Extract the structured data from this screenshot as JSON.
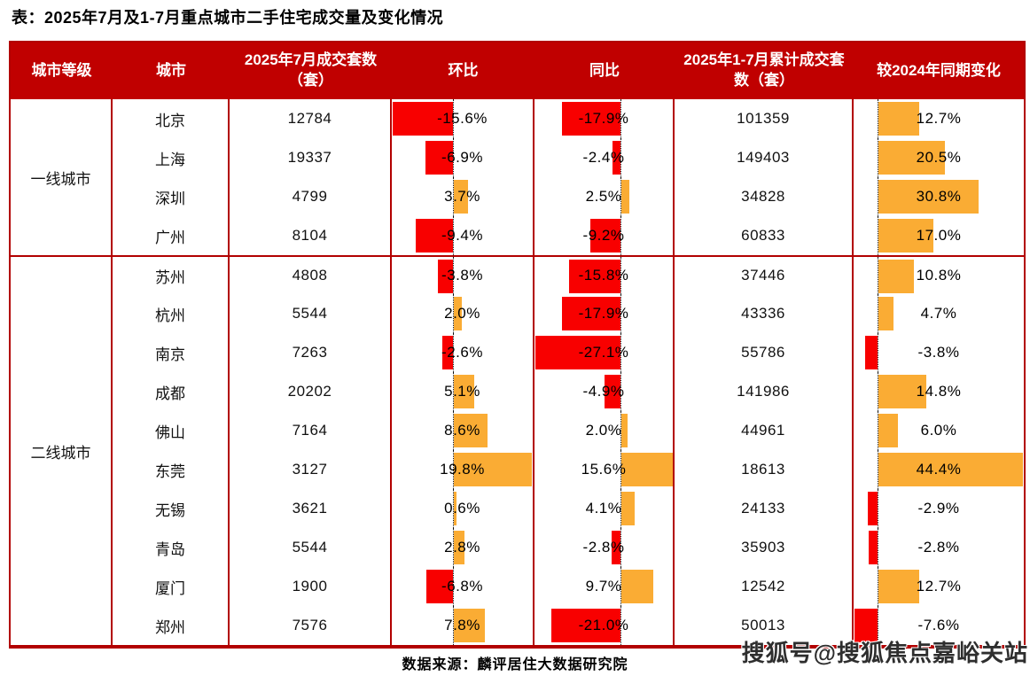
{
  "title": "表：2025年7月及1-7月重点城市二手住宅成交量及变化情况",
  "chart_data": {
    "type": "table",
    "title": "表：2025年7月及1-7月重点城市二手住宅成交量及变化情况",
    "columns": [
      "城市等级",
      "城市",
      "2025年7月成交套数（套）",
      "环比",
      "同比",
      "2025年1-7月累计成交套数（套）",
      "较2024年同期变化"
    ],
    "bar_columns_note": "环比/同比/较2024年同期变化 three columns drawn as in-cell bars: negative=red extending left of dotted zero axis, positive=amber extending right",
    "groups": [
      {
        "tier": "一线城市",
        "rows": [
          {
            "city": "北京",
            "july_units": "12784",
            "mom_pct": -15.6,
            "yoy_pct": -17.9,
            "cum_units": "101359",
            "vs2024_pct": 12.7
          },
          {
            "city": "上海",
            "july_units": "19337",
            "mom_pct": -6.9,
            "yoy_pct": -2.4,
            "cum_units": "149403",
            "vs2024_pct": 20.5
          },
          {
            "city": "深圳",
            "july_units": "4799",
            "mom_pct": 3.7,
            "yoy_pct": 2.5,
            "cum_units": "34828",
            "vs2024_pct": 30.8
          },
          {
            "city": "广州",
            "july_units": "8104",
            "mom_pct": -9.4,
            "yoy_pct": -9.2,
            "cum_units": "60833",
            "vs2024_pct": 17.0
          }
        ]
      },
      {
        "tier": "二线城市",
        "rows": [
          {
            "city": "苏州",
            "july_units": "4808",
            "mom_pct": -3.8,
            "yoy_pct": -15.8,
            "cum_units": "37446",
            "vs2024_pct": 10.8
          },
          {
            "city": "杭州",
            "july_units": "5544",
            "mom_pct": 2.0,
            "yoy_pct": -17.9,
            "cum_units": "43336",
            "vs2024_pct": 4.7
          },
          {
            "city": "南京",
            "july_units": "7263",
            "mom_pct": -2.6,
            "yoy_pct": -27.1,
            "cum_units": "55786",
            "vs2024_pct": -3.8
          },
          {
            "city": "成都",
            "july_units": "20202",
            "mom_pct": 5.1,
            "yoy_pct": -4.9,
            "cum_units": "141986",
            "vs2024_pct": 14.8
          },
          {
            "city": "佛山",
            "july_units": "7164",
            "mom_pct": 8.6,
            "yoy_pct": 2.0,
            "cum_units": "44961",
            "vs2024_pct": 6.0
          },
          {
            "city": "东莞",
            "july_units": "3127",
            "mom_pct": 19.8,
            "yoy_pct": 15.6,
            "cum_units": "18613",
            "vs2024_pct": 44.4
          },
          {
            "city": "无锡",
            "july_units": "3621",
            "mom_pct": 0.6,
            "yoy_pct": 4.1,
            "cum_units": "24133",
            "vs2024_pct": -2.9
          },
          {
            "city": "青岛",
            "july_units": "5544",
            "mom_pct": 2.8,
            "yoy_pct": -2.8,
            "cum_units": "35903",
            "vs2024_pct": -2.8
          },
          {
            "city": "厦门",
            "july_units": "1900",
            "mom_pct": -6.8,
            "yoy_pct": 9.7,
            "cum_units": "12542",
            "vs2024_pct": 12.7
          },
          {
            "city": "郑州",
            "july_units": "7576",
            "mom_pct": 7.8,
            "yoy_pct": -21.0,
            "cum_units": "50013",
            "vs2024_pct": -7.6
          }
        ]
      }
    ]
  },
  "footer": {
    "source": "数据来源：麟评居住大数据研究院"
  },
  "watermark": "搜狐号@搜狐焦点嘉峪关站",
  "colors": {
    "header_bg": "#C00000",
    "table_border": "#B20000",
    "bar_negative": "#F80000",
    "bar_positive": "#FAAC34",
    "zero_line": "#111111"
  }
}
